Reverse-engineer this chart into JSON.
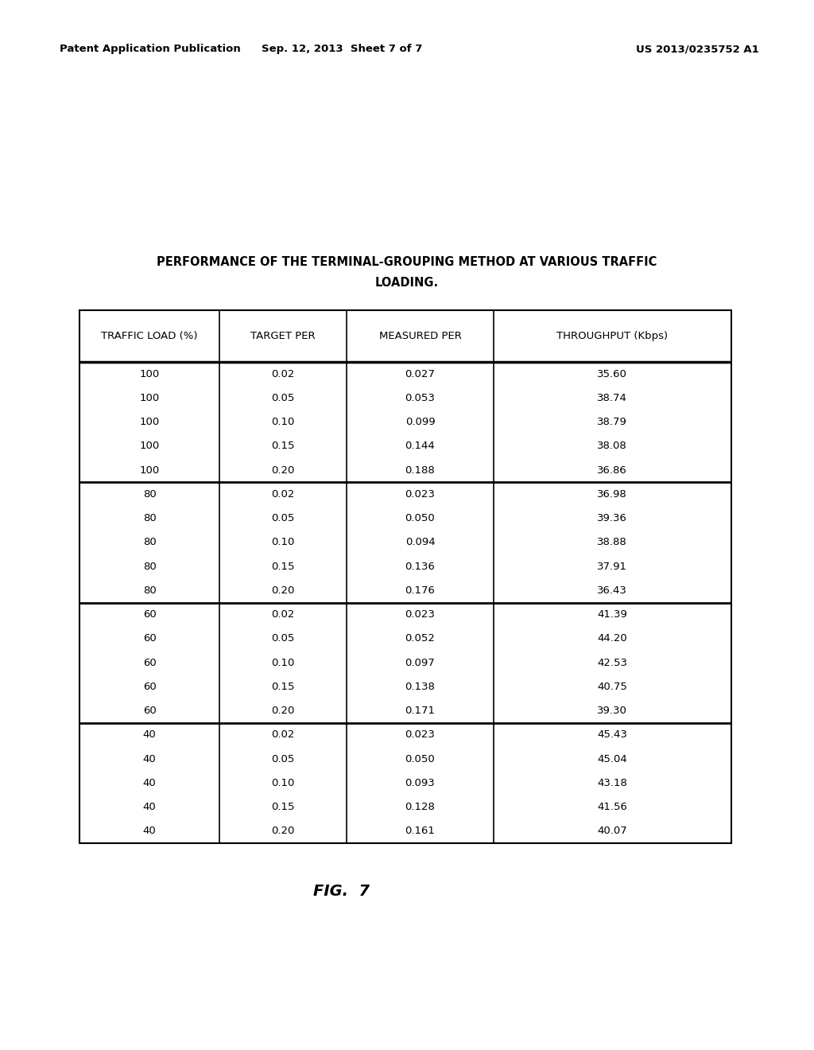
{
  "header_left": "Patent Application Publication",
  "header_center": "Sep. 12, 2013  Sheet 7 of 7",
  "header_right": "US 2013/0235752 A1",
  "title_line1": "PERFORMANCE OF THE TERMINAL-GROUPING METHOD AT VARIOUS TRAFFIC",
  "title_line2": "LOADING.",
  "col_headers": [
    "TRAFFIC LOAD (%)",
    "TARGET PER",
    "MEASURED PER",
    "THROUGHPUT (Kbps)"
  ],
  "groups": [
    {
      "traffic_load": [
        100,
        100,
        100,
        100,
        100
      ],
      "target_per": [
        "0.02",
        "0.05",
        "0.10",
        "0.15",
        "0.20"
      ],
      "measured_per": [
        "0.027",
        "0.053",
        "0.099",
        "0.144",
        "0.188"
      ],
      "throughput": [
        "35.60",
        "38.74",
        "38.79",
        "38.08",
        "36.86"
      ]
    },
    {
      "traffic_load": [
        80,
        80,
        80,
        80,
        80
      ],
      "target_per": [
        "0.02",
        "0.05",
        "0.10",
        "0.15",
        "0.20"
      ],
      "measured_per": [
        "0.023",
        "0.050",
        "0.094",
        "0.136",
        "0.176"
      ],
      "throughput": [
        "36.98",
        "39.36",
        "38.88",
        "37.91",
        "36.43"
      ]
    },
    {
      "traffic_load": [
        60,
        60,
        60,
        60,
        60
      ],
      "target_per": [
        "0.02",
        "0.05",
        "0.10",
        "0.15",
        "0.20"
      ],
      "measured_per": [
        "0.023",
        "0.052",
        "0.097",
        "0.138",
        "0.171"
      ],
      "throughput": [
        "41.39",
        "44.20",
        "42.53",
        "40.75",
        "39.30"
      ]
    },
    {
      "traffic_load": [
        40,
        40,
        40,
        40,
        40
      ],
      "target_per": [
        "0.02",
        "0.05",
        "0.10",
        "0.15",
        "0.20"
      ],
      "measured_per": [
        "0.023",
        "0.050",
        "0.093",
        "0.128",
        "0.161"
      ],
      "throughput": [
        "45.43",
        "45.04",
        "43.18",
        "41.56",
        "40.07"
      ]
    }
  ],
  "fig_label": "FIG.  7",
  "background_color": "#ffffff",
  "text_color": "#000000"
}
